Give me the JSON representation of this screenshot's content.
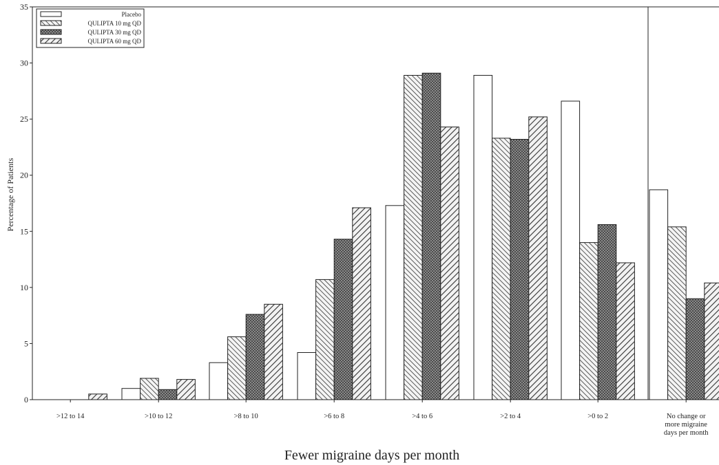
{
  "chart_data": {
    "type": "bar",
    "xlabel": "Fewer migraine days per month",
    "ylabel": "Percentage of Patients",
    "ylim": [
      0,
      35
    ],
    "yticks": [
      0,
      5,
      10,
      15,
      20,
      25,
      30,
      35
    ],
    "grid": false,
    "legend_position": "top-left",
    "categories": [
      ">12 to 14",
      ">10 to 12",
      ">8 to 10",
      ">6 to 8",
      ">4 to 6",
      ">2 to 4",
      ">0 to 2",
      "No change or more migraine days per month"
    ],
    "category_lines": [
      [
        ">12 to 14"
      ],
      [
        ">10 to 12"
      ],
      [
        ">8 to 10"
      ],
      [
        ">6 to 8"
      ],
      [
        ">4 to 6"
      ],
      [
        ">2 to 4"
      ],
      [
        ">0 to 2"
      ],
      [
        "No change or",
        "more migraine",
        "days per month"
      ]
    ],
    "series": [
      {
        "name": "Placebo",
        "pattern": "none",
        "values": [
          0,
          1.0,
          3.3,
          4.2,
          17.3,
          28.9,
          26.6,
          18.7
        ]
      },
      {
        "name": "QULIPTA 10 mg QD",
        "pattern": "diag-left",
        "values": [
          0,
          1.9,
          5.6,
          10.7,
          28.9,
          23.3,
          14.0,
          15.4
        ]
      },
      {
        "name": "QULIPTA 30 mg QD",
        "pattern": "crosshatch",
        "values": [
          0,
          0.9,
          7.6,
          14.3,
          29.1,
          23.2,
          15.6,
          9.0
        ]
      },
      {
        "name": "QULIPTA 60 mg QD",
        "pattern": "diag-right",
        "values": [
          0.5,
          1.8,
          8.5,
          17.1,
          24.3,
          25.2,
          12.2,
          10.4
        ]
      }
    ],
    "colors": {
      "placebo_fill": "#ffffff",
      "bar_stroke": "#222222",
      "hatch": "#444444",
      "crosshatch_bg": "#555555"
    }
  }
}
